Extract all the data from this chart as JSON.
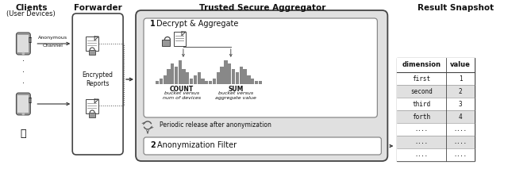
{
  "bg_color": "#ffffff",
  "title_clients": "Clients",
  "subtitle_clients": "(User Devices)",
  "title_forwarder": "Forwarder",
  "title_aggregator": "Trusted Secure Aggregator",
  "title_result": "Result Snapshot",
  "label_anon_channel": "Anonymous\nChannel",
  "label_encrypted": "Encrypted\nReports",
  "label_decrypt": "Decrypt & Aggregate",
  "label_count": "COUNT",
  "label_count_sub": "bucket versus\nnum of devices",
  "label_sum": "SUM",
  "label_sum_sub": "bucket versus\naggregate value",
  "label_periodic": "Periodic release after anonymization",
  "label_anon_filter": "Anonymization Filter",
  "label_step1": "1",
  "label_step2": "2",
  "table_header_dim": "dimension",
  "table_header_val": "value",
  "table_rows": [
    [
      "first",
      "1"
    ],
    [
      "second",
      "2"
    ],
    [
      "third",
      "3"
    ],
    [
      "forth",
      "4"
    ],
    [
      "....",
      "...."
    ],
    [
      "....",
      "...."
    ],
    [
      "....",
      "...."
    ]
  ],
  "gray_light": "#e0e0e0",
  "gray_mid": "#999999",
  "gray_dark": "#888888",
  "gray_box": "#d0d0d0",
  "gray_outer": "#c8c8c8",
  "border_color": "#444444",
  "border_light": "#888888",
  "text_color": "#111111",
  "count_bars": [
    1,
    2,
    3,
    5,
    7,
    6,
    8,
    5,
    4,
    2,
    3,
    4,
    2,
    1
  ],
  "sum_bars": [
    1,
    2,
    4,
    6,
    8,
    7,
    5,
    4,
    6,
    5,
    3,
    2,
    1,
    1
  ]
}
